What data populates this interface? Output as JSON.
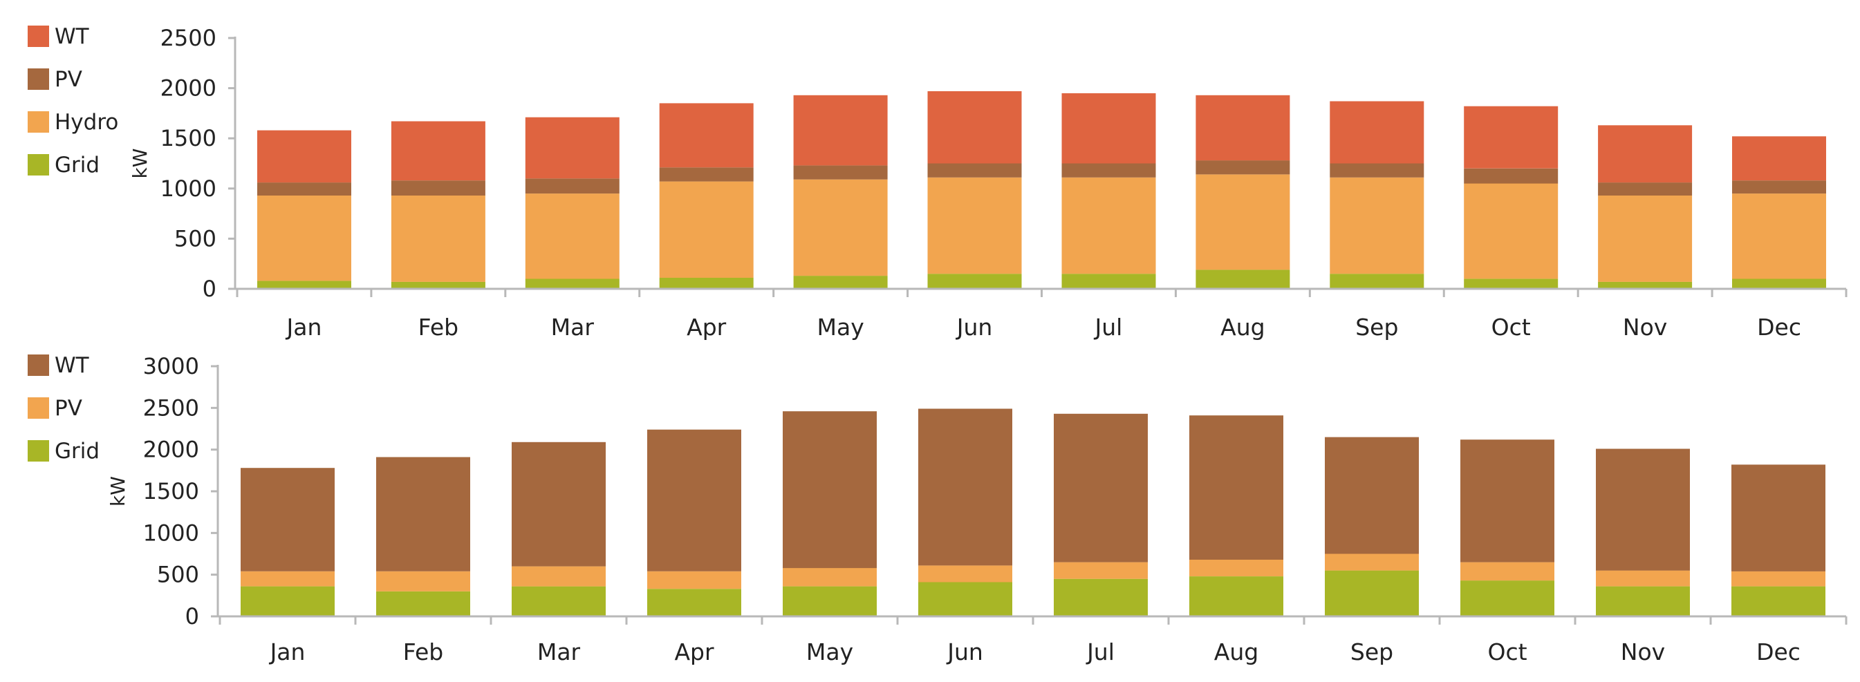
{
  "chart_data": [
    {
      "type": "bar",
      "stacked": true,
      "ylabel": "kW",
      "ylim": [
        0,
        2500
      ],
      "yticks": [
        0,
        500,
        1000,
        1500,
        2000,
        2500
      ],
      "categories": [
        "Jan",
        "Feb",
        "Mar",
        "Apr",
        "May",
        "Jun",
        "Jul",
        "Aug",
        "Sep",
        "Oct",
        "Nov",
        "Dec"
      ],
      "legend_position": "top-left",
      "series": [
        {
          "name": "Grid",
          "color": "#a8b626",
          "values": [
            80,
            70,
            100,
            110,
            130,
            150,
            150,
            190,
            150,
            100,
            70,
            100
          ]
        },
        {
          "name": "Hydro",
          "color": "#f2a54f",
          "values": [
            850,
            860,
            850,
            960,
            960,
            960,
            960,
            950,
            960,
            950,
            860,
            850
          ]
        },
        {
          "name": "PV",
          "color": "#a5683e",
          "values": [
            130,
            150,
            150,
            140,
            140,
            140,
            140,
            140,
            140,
            150,
            130,
            130
          ]
        },
        {
          "name": "WT",
          "color": "#df6440",
          "values": [
            520,
            590,
            610,
            640,
            700,
            720,
            700,
            650,
            620,
            620,
            570,
            440
          ]
        }
      ]
    },
    {
      "type": "bar",
      "stacked": true,
      "ylabel": "kW",
      "ylim": [
        0,
        3000
      ],
      "yticks": [
        0,
        500,
        1000,
        1500,
        2000,
        2500,
        3000
      ],
      "categories": [
        "Jan",
        "Feb",
        "Mar",
        "Apr",
        "May",
        "Jun",
        "Jul",
        "Aug",
        "Sep",
        "Oct",
        "Nov",
        "Dec"
      ],
      "legend_position": "top-left",
      "series": [
        {
          "name": "Grid",
          "color": "#a8b626",
          "values": [
            360,
            300,
            360,
            330,
            360,
            410,
            450,
            480,
            550,
            430,
            360,
            360
          ]
        },
        {
          "name": "PV",
          "color": "#f2a54f",
          "values": [
            180,
            240,
            240,
            210,
            220,
            200,
            200,
            200,
            200,
            220,
            190,
            180
          ]
        },
        {
          "name": "WT",
          "color": "#a5683e",
          "values": [
            1240,
            1370,
            1490,
            1700,
            1880,
            1880,
            1780,
            1730,
            1400,
            1470,
            1460,
            1280
          ]
        }
      ]
    }
  ]
}
